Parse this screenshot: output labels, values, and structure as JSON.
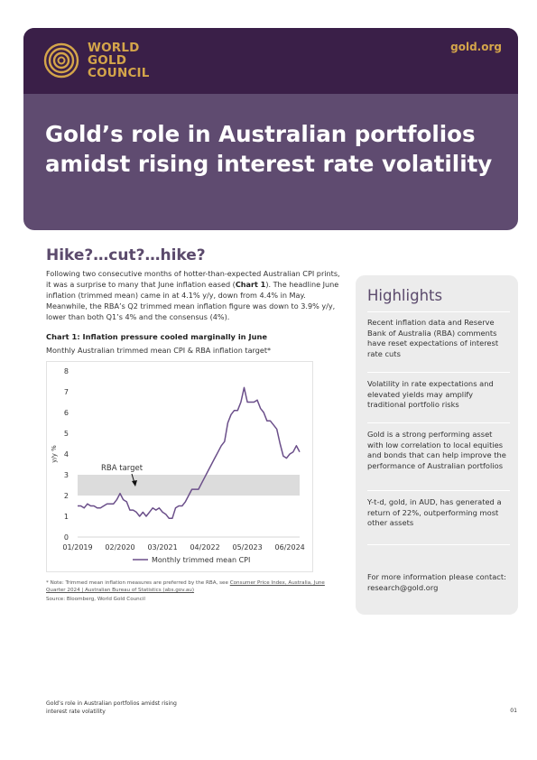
{
  "header": {
    "logo_lines": [
      "WORLD",
      "GOLD",
      "COUNCIL"
    ],
    "site": "gold.org",
    "title_lines": [
      "Gold’s role in Australian portfolios",
      "amidst rising interest rate volatility"
    ]
  },
  "section": {
    "heading": "Hike?…cut?…hike?",
    "intro": {
      "p1": "Following two consecutive months of hotter-than-expected Australian CPI prints, it was a surprise to many that June inflation eased (",
      "chart_ref": "Chart 1",
      "p2": "). The headline June inflation (trimmed mean) came in at 4.1% y/y, down from 4.4% in May. Meanwhile, the RBA’s Q2 trimmed mean inflation figure was down to 3.9% y/y, lower than both Q1’s 4% and the consensus (4%)."
    }
  },
  "chart": {
    "title": "Chart 1: Inflation pressure cooled marginally in June",
    "subtitle": "Monthly Australian trimmed mean CPI & RBA inflation target*",
    "note_prefix": "* Note: Trimmed mean inflation measures are preferred by the RBA, see ",
    "note_link": "Consumer Price Index, Australia, June Quarter 2024 | Australian Bureau of Statistics (abs.gov.au)",
    "source": "Source: Bloomberg, World Gold Council"
  },
  "chart_data": {
    "type": "line",
    "ylabel": "y/y %",
    "ylim": [
      0,
      8
    ],
    "y_ticks": [
      "0",
      "1",
      "2",
      "3",
      "4",
      "5",
      "6",
      "7",
      "8"
    ],
    "x_tick_labels": [
      "01/2019",
      "02/2020",
      "03/2021",
      "04/2022",
      "05/2023",
      "06/2024"
    ],
    "x_tick_index": [
      0,
      13,
      26,
      39,
      52,
      65
    ],
    "target_band": [
      2,
      3
    ],
    "target_label": "RBA target",
    "legend_position": "bottom",
    "grid": false,
    "series": [
      {
        "name": "Monthly trimmed mean CPI",
        "color": "#6b4f8a",
        "values": [
          1.5,
          1.5,
          1.4,
          1.6,
          1.5,
          1.5,
          1.4,
          1.4,
          1.5,
          1.6,
          1.6,
          1.6,
          1.8,
          2.1,
          1.8,
          1.7,
          1.3,
          1.3,
          1.2,
          1.0,
          1.2,
          1.0,
          1.2,
          1.4,
          1.3,
          1.4,
          1.2,
          1.1,
          0.9,
          0.9,
          1.4,
          1.5,
          1.5,
          1.7,
          2.0,
          2.3,
          2.3,
          2.3,
          2.6,
          2.9,
          3.2,
          3.5,
          3.8,
          4.1,
          4.4,
          4.6,
          5.5,
          5.9,
          6.1,
          6.1,
          6.5,
          7.2,
          6.5,
          6.5,
          6.5,
          6.6,
          6.2,
          6.0,
          5.6,
          5.6,
          5.4,
          5.2,
          4.5,
          3.9,
          3.8,
          4.0,
          4.1,
          4.4,
          4.1
        ]
      }
    ]
  },
  "highlights": {
    "title": "Highlights",
    "items": [
      "Recent inflation data and Reserve Bank of Australia (RBA) comments have reset expectations of interest rate cuts",
      "Volatility in rate expectations and elevated yields may amplify traditional portfolio risks",
      "Gold is a strong performing asset with low correlation to local equities and bonds that can help improve the performance of Australian portfolios",
      "Y-t-d, gold, in AUD, has generated a return of 22%, outperforming most other assets"
    ],
    "contact": "For more information please contact: research@gold.org"
  },
  "footer": {
    "lines": [
      "Gold’s role in Australian portfolios amidst rising",
      "interest rate volatility"
    ],
    "page": "01"
  },
  "colors": {
    "header_dark": "#3a1f48",
    "header_mid": "#5f4b70",
    "gold": "#d4a54a",
    "accent_purple": "#5b4a6c",
    "band_gray": "#dcdcdc"
  }
}
